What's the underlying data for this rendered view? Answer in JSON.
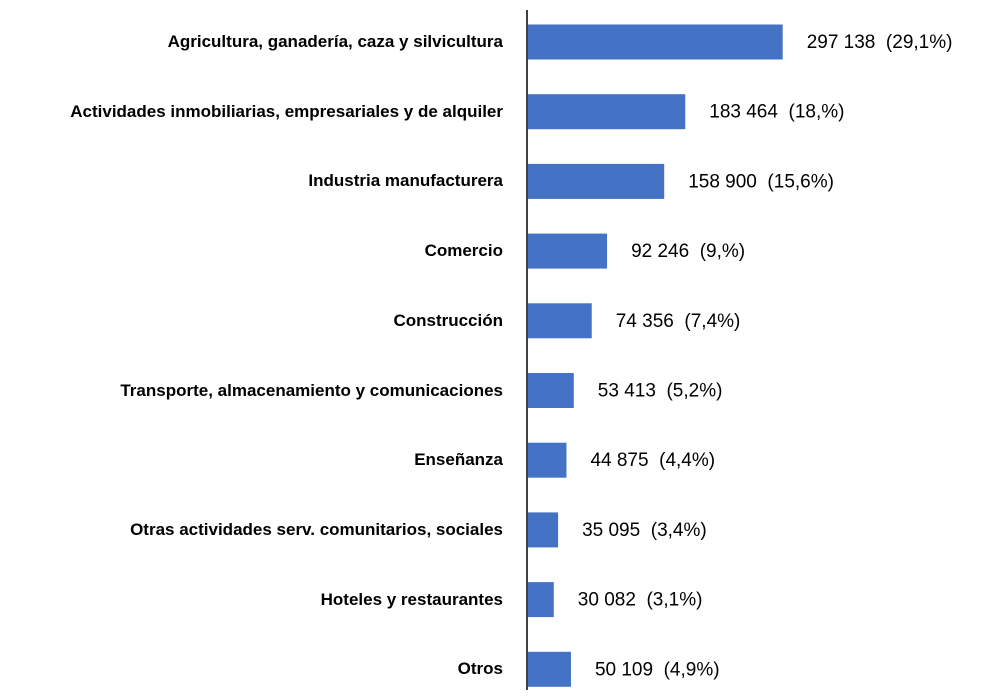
{
  "chart_data": {
    "type": "hbar",
    "categories": [
      "Agricultura, ganadería, caza y silvicultura",
      "Actividades inmobiliarias, empresariales y de alquiler",
      "Industria manufacturera",
      "Comercio",
      "Construcción",
      "Transporte, almacenamiento y comunicaciones",
      "Enseñanza",
      "Otras actividades serv. comunitarios, sociales",
      "Hoteles y restaurantes",
      "Otros"
    ],
    "values": [
      297138,
      183464,
      158900,
      92246,
      74356,
      53413,
      44875,
      35095,
      30082,
      50109
    ],
    "value_labels": [
      "297 138  (29,1%)",
      "183 464  (18,%)",
      "158 900  (15,6%)",
      "92 246  (9,%)",
      "74 356  (7,4%)",
      "53 413  (5,2%)",
      "44 875  (4,4%)",
      "35 095  (3,4%)",
      "30 082  (3,1%)",
      "50 109  (4,9%)"
    ],
    "color": "#4472c4",
    "xlim": [
      0,
      350000
    ]
  }
}
